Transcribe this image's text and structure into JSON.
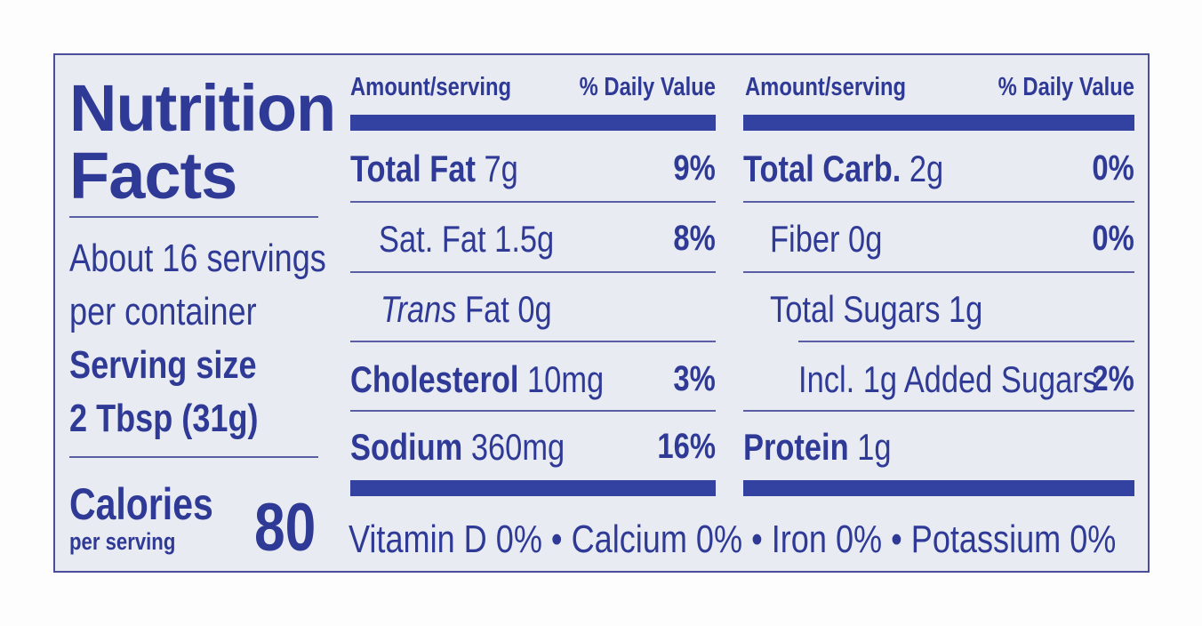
{
  "title_line1": "Nutrition",
  "title_line2": "Facts",
  "servings_line1": "About 16 servings",
  "servings_line2": "per container",
  "serving_size_label": "Serving size",
  "serving_size_value": "2 Tbsp (31g)",
  "calories_label": "Calories",
  "calories_sub": "per serving",
  "calories_value": "80",
  "header": {
    "amount": "Amount/serving",
    "dv": "% Daily Value"
  },
  "left_rows": [
    {
      "name": "Total Fat",
      "amount": "7g",
      "dv": "9%"
    },
    {
      "name": "Sat. Fat",
      "amount": "1.5g",
      "dv": "8%"
    },
    {
      "name": "Trans",
      "name_suffix": "Fat",
      "amount": "0g",
      "dv": ""
    },
    {
      "name": "Cholesterol",
      "amount": "10mg",
      "dv": "3%"
    },
    {
      "name": "Sodium",
      "amount": "360mg",
      "dv": "16%"
    }
  ],
  "right_rows": [
    {
      "name": "Total Carb.",
      "amount": "2g",
      "dv": "0%"
    },
    {
      "name": "Fiber",
      "amount": "0g",
      "dv": "0%"
    },
    {
      "name": "Total Sugars",
      "amount": "1g",
      "dv": ""
    },
    {
      "name": "Incl. 1g Added Sugars",
      "amount": "",
      "dv": "2%"
    },
    {
      "name": "Protein",
      "amount": "1g",
      "dv": ""
    }
  ],
  "footer": "Vitamin D 0% • Calcium 0% • Iron 0% • Potassium 0%",
  "colors": {
    "text": "#2e3a96",
    "background": "#e9ebf3",
    "bars": "#3342a0"
  }
}
